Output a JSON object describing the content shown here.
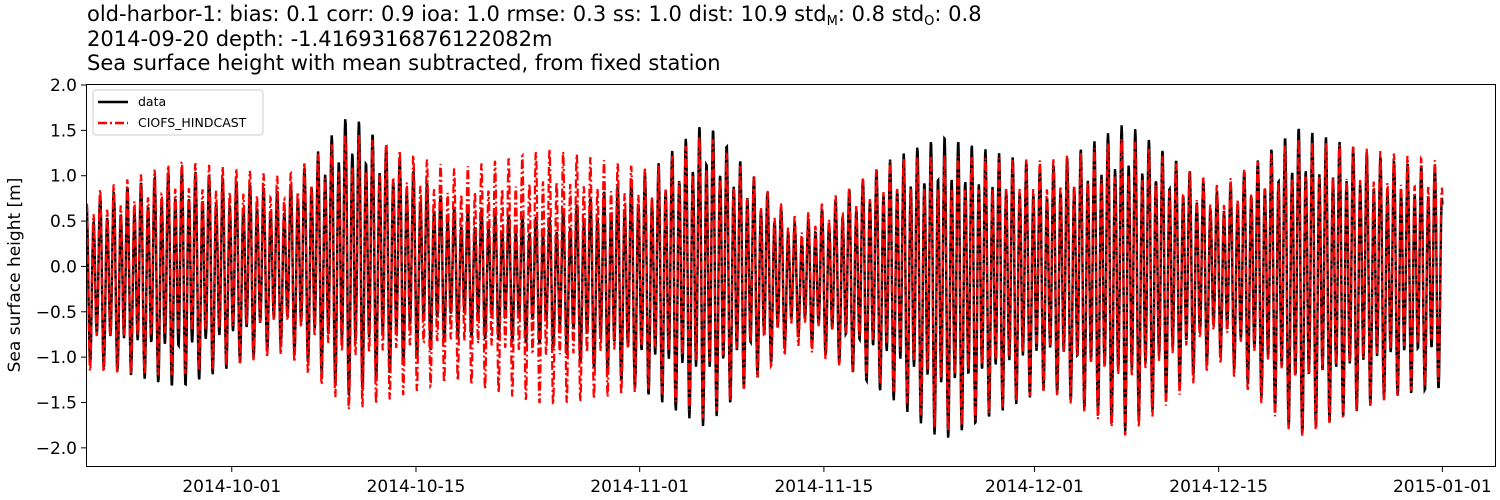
{
  "title": {
    "line1_prefix": "old-harbor-1: bias: 0.1  corr: 0.9  ioa: 1.0  rmse: 0.3  ss: 1.0  dist: 10.9  std",
    "sub_model": "M",
    "line1_mid": ": 0.8  std",
    "sub_obs": "O",
    "line1_suffix": ": 0.8",
    "line2": "2014-09-20 depth: -1.4169316876122082m",
    "line3": "Sea surface height with mean subtracted, from fixed station"
  },
  "colors": {
    "data": "#000000",
    "model": "#ff0000"
  },
  "chart_data": {
    "type": "line",
    "xlabel": "",
    "ylabel": "Sea surface height [m]",
    "ylim": [
      -2.2,
      2.0
    ],
    "xlim": [
      "2014-09-20",
      "2015-01-05"
    ],
    "yticks": [
      2.0,
      1.5,
      1.0,
      0.5,
      0.0,
      -0.5,
      -1.0,
      -1.5,
      -2.0
    ],
    "ytick_labels": [
      "2.0",
      "1.5",
      "1.0",
      "0.5",
      "0.0",
      "−0.5",
      "−1.0",
      "−1.5",
      "−2.0"
    ],
    "xticks": [
      "2014-10-01",
      "2014-10-15",
      "2014-11-01",
      "2014-11-15",
      "2014-12-01",
      "2014-12-15",
      "2015-01-01"
    ],
    "xtick_labels": [
      "2014-10-01",
      "2014-10-15",
      "2014-11-01",
      "2014-11-15",
      "2014-12-01",
      "2014-12-15",
      "2015-01-01"
    ],
    "grid": false,
    "legend_position": "top-left",
    "data_range": [
      "2014-09-20",
      "2015-01-01"
    ],
    "series": [
      {
        "name": "data",
        "style": "solid",
        "envelope_dates": [
          "2014-09-20",
          "2014-09-27",
          "2014-10-05",
          "2014-10-10",
          "2014-10-18",
          "2014-10-25",
          "2014-11-02",
          "2014-11-06",
          "2014-11-13",
          "2014-11-20",
          "2014-11-24",
          "2014-12-02",
          "2014-12-08",
          "2014-12-15",
          "2014-12-21",
          "2014-12-28",
          "2015-01-01"
        ],
        "max_values": [
          0.8,
          1.2,
          0.9,
          1.84,
          0.7,
          0.6,
          1.2,
          1.77,
          0.5,
          1.3,
          1.6,
          1.2,
          1.75,
          0.9,
          1.7,
          1.3,
          1.2
        ],
        "min_values": [
          -1.1,
          -1.4,
          -0.9,
          -1.5,
          -0.8,
          -0.9,
          -1.5,
          -1.85,
          -0.8,
          -1.5,
          -2.0,
          -1.4,
          -1.9,
          -1.0,
          -1.95,
          -1.5,
          -1.4
        ]
      },
      {
        "name": "CIOFS_HINDCAST",
        "style": "dashdot",
        "envelope_dates": [
          "2014-09-20",
          "2014-09-27",
          "2014-10-05",
          "2014-10-10",
          "2014-10-18",
          "2014-10-25",
          "2014-11-02",
          "2014-11-06",
          "2014-11-13",
          "2014-11-20",
          "2014-11-24",
          "2014-12-02",
          "2014-12-08",
          "2014-12-15",
          "2014-12-21",
          "2014-12-28",
          "2015-01-01"
        ],
        "max_values": [
          0.9,
          1.3,
          1.1,
          1.65,
          1.2,
          1.45,
          1.2,
          1.65,
          0.6,
          1.3,
          1.4,
          1.3,
          1.6,
          1.0,
          1.6,
          1.4,
          1.3
        ],
        "min_values": [
          -1.2,
          -1.25,
          -1.0,
          -1.65,
          -1.3,
          -1.6,
          -1.4,
          -1.75,
          -0.9,
          -1.4,
          -1.9,
          -1.4,
          -1.95,
          -1.1,
          -1.95,
          -1.5,
          -1.3
        ]
      }
    ]
  }
}
